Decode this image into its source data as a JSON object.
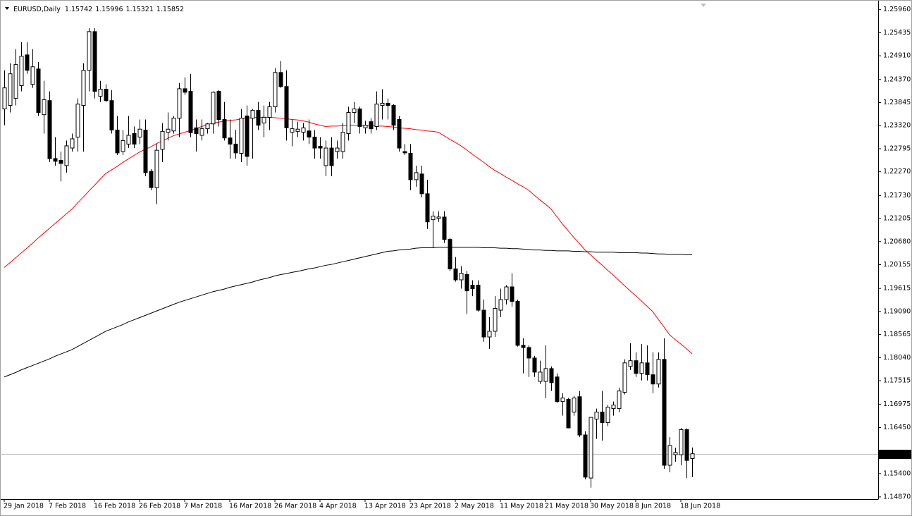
{
  "chart_data": {
    "type": "candlestick",
    "title": "EURUSD,Daily",
    "categories": [
      "29 Jan 2018",
      null,
      null,
      null,
      null,
      null,
      null,
      null,
      "7 Feb 2018",
      null,
      null,
      null,
      null,
      null,
      null,
      null,
      "16 Feb 2018",
      null,
      null,
      null,
      null,
      null,
      null,
      null,
      "26 Feb 2018",
      null,
      null,
      null,
      null,
      null,
      null,
      null,
      "7 Mar 2018",
      null,
      null,
      null,
      null,
      null,
      null,
      null,
      "16 Mar 2018",
      null,
      null,
      null,
      null,
      null,
      null,
      null,
      "26 Mar 2018",
      null,
      null,
      null,
      null,
      null,
      null,
      null,
      "4 Apr 2018",
      null,
      null,
      null,
      null,
      null,
      null,
      null,
      "13 Apr 2018",
      null,
      null,
      null,
      null,
      null,
      null,
      null,
      "23 Apr 2018",
      null,
      null,
      null,
      null,
      null,
      null,
      null,
      "2 May 2018",
      null,
      null,
      null,
      null,
      null,
      null,
      null,
      "11 May 2018",
      null,
      null,
      null,
      null,
      null,
      null,
      null,
      "21 May 2018",
      null,
      null,
      null,
      null,
      null,
      null,
      null,
      "30 May 2018",
      null,
      null,
      null,
      null,
      null,
      null,
      null,
      "8 Jun 2018",
      null,
      null,
      null,
      null,
      null,
      null,
      null,
      "18 Jun 2018",
      null,
      null
    ],
    "open": [
      1.237,
      1.2378,
      1.2394,
      1.2423,
      1.2493,
      1.2426,
      1.2461,
      1.2357,
      1.2389,
      1.2257,
      1.2253,
      1.2241,
      1.2281,
      1.2306,
      1.2378,
      1.2458,
      1.2546,
      1.2399,
      1.2415,
      1.2389,
      1.2322,
      1.2273,
      1.229,
      1.2314,
      1.2306,
      1.2322,
      1.2228,
      1.2191,
      1.2278,
      1.2317,
      1.232,
      1.2349,
      1.2416,
      1.241,
      1.2327,
      1.231,
      1.2325,
      1.2336,
      1.241,
      1.2346,
      1.2304,
      1.229,
      1.2269,
      1.2354,
      1.2349,
      1.2367,
      1.2338,
      1.2351,
      1.2375,
      1.2453,
      1.2421,
      1.2317,
      1.2319,
      1.2317,
      1.232,
      1.2306,
      1.2285,
      1.2241,
      1.2281,
      1.2273,
      1.2273,
      1.2314,
      1.2362,
      1.237,
      1.2327,
      1.2341,
      1.233,
      1.2378,
      1.2383,
      1.2378,
      1.2346,
      1.2273,
      1.2269,
      1.2209,
      1.2222,
      1.2177,
      1.2118,
      1.2121,
      1.2124,
      1.2073,
      1.2006,
      1.1981,
      1.1993,
      1.1969,
      1.1969,
      1.1912,
      1.1851,
      1.1864,
      1.1912,
      1.1936,
      1.1965,
      1.1932,
      1.1832,
      1.1827,
      1.1803,
      1.175,
      1.175,
      1.1779,
      1.176,
      1.1704,
      1.1709,
      1.168,
      1.1715,
      1.1628,
      1.153,
      1.1664,
      1.168,
      1.1656,
      1.1688,
      1.1688,
      1.1725,
      1.1784,
      1.1797,
      1.1768,
      1.1792,
      1.1765,
      1.1744,
      1.18,
      1.1559,
      1.1583,
      1.1583,
      1.164,
      1.15742
    ],
    "high": [
      1.2458,
      1.2474,
      1.2506,
      1.2522,
      1.2522,
      1.2506,
      1.2477,
      1.2434,
      1.241,
      1.2306,
      1.2273,
      1.2298,
      1.2314,
      1.2394,
      1.2474,
      1.2554,
      1.2554,
      1.2434,
      1.2426,
      1.2413,
      1.2354,
      1.2322,
      1.2354,
      1.233,
      1.2346,
      1.2346,
      1.2233,
      1.229,
      1.2338,
      1.2362,
      1.2354,
      1.2429,
      1.2442,
      1.245,
      1.2346,
      1.2346,
      1.2338,
      1.241,
      1.2413,
      1.2386,
      1.2346,
      1.2322,
      1.237,
      1.2378,
      1.237,
      1.2386,
      1.2378,
      1.2386,
      1.2463,
      1.2479,
      1.2458,
      1.2346,
      1.2341,
      1.2338,
      1.2346,
      1.2322,
      1.2306,
      1.2298,
      1.2306,
      1.2298,
      1.2338,
      1.2375,
      1.2386,
      1.2375,
      1.2343,
      1.2349,
      1.241,
      1.2415,
      1.2394,
      1.2381,
      1.2354,
      1.229,
      1.229,
      1.2241,
      1.2241,
      1.2209,
      1.2137,
      1.2137,
      1.2137,
      1.2076,
      1.2033,
      1.2012,
      1.2001,
      1.198,
      1.198,
      1.1936,
      1.1896,
      1.1944,
      1.1961,
      1.1969,
      1.1996,
      1.1936,
      1.1848,
      1.1832,
      1.1808,
      1.1797,
      1.1832,
      1.1784,
      1.1768,
      1.1723,
      1.1712,
      1.1717,
      1.1728,
      1.1636,
      1.1668,
      1.1688,
      1.1728,
      1.1696,
      1.1704,
      1.1736,
      1.18,
      1.1837,
      1.1816,
      1.1835,
      1.1832,
      1.1816,
      1.1816,
      1.1848,
      1.1623,
      1.1599,
      1.1644,
      1.1643,
      1.15996
    ],
    "low": [
      1.2333,
      1.2362,
      1.2378,
      1.241,
      1.245,
      1.2418,
      1.2354,
      1.2314,
      1.2249,
      1.2241,
      1.2205,
      1.2225,
      1.2273,
      1.2273,
      1.2273,
      1.241,
      1.2394,
      1.2386,
      1.2386,
      1.2314,
      1.2265,
      1.2265,
      1.2281,
      1.2281,
      1.229,
      1.2217,
      1.2185,
      1.2153,
      1.2249,
      1.2298,
      1.2314,
      1.2306,
      1.2402,
      1.2306,
      1.2273,
      1.2298,
      1.2314,
      1.2314,
      1.233,
      1.2298,
      1.2257,
      1.2257,
      1.2249,
      1.2241,
      1.2257,
      1.2322,
      1.2306,
      1.2322,
      1.2362,
      1.2418,
      1.2298,
      1.2285,
      1.2306,
      1.2298,
      1.229,
      1.2257,
      1.2257,
      1.2217,
      1.2217,
      1.2257,
      1.2257,
      1.2298,
      1.2338,
      1.2314,
      1.2314,
      1.2314,
      1.2322,
      1.2346,
      1.2346,
      1.2322,
      1.2273,
      1.2265,
      1.2185,
      1.2193,
      1.2169,
      1.2097,
      1.2054,
      1.2113,
      1.2065,
      1.2001,
      1.1977,
      1.1961,
      1.1904,
      1.1944,
      1.1909,
      1.184,
      1.1824,
      1.1851,
      1.1896,
      1.1925,
      1.192,
      1.1829,
      1.1768,
      1.176,
      1.176,
      1.1744,
      1.1712,
      1.1728,
      1.1701,
      1.1672,
      1.1643,
      1.1672,
      1.1623,
      1.1527,
      1.1508,
      1.1619,
      1.1615,
      1.1648,
      1.1672,
      1.168,
      1.172,
      1.1776,
      1.176,
      1.1752,
      1.1752,
      1.1723,
      1.1736,
      1.1551,
      1.1543,
      1.1567,
      1.1559,
      1.153,
      1.15321
    ],
    "close": [
      1.2418,
      1.245,
      1.2471,
      1.249,
      1.2458,
      1.2466,
      1.2362,
      1.2391,
      1.2257,
      1.2251,
      1.2246,
      1.2286,
      1.2302,
      1.2381,
      1.2458,
      1.2546,
      1.241,
      1.2415,
      1.2389,
      1.2322,
      1.227,
      1.2298,
      1.231,
      1.229,
      1.2324,
      1.2225,
      1.2191,
      1.2276,
      1.2319,
      1.2324,
      1.2349,
      1.2416,
      1.2408,
      1.2316,
      1.2314,
      1.2325,
      1.2336,
      1.2408,
      1.2346,
      1.2304,
      1.229,
      1.227,
      1.2349,
      1.2262,
      1.2367,
      1.2333,
      1.2351,
      1.2375,
      1.2453,
      1.2421,
      1.2327,
      1.2325,
      1.2324,
      1.2327,
      1.2306,
      1.2281,
      1.2281,
      1.2281,
      1.2241,
      1.2281,
      1.2317,
      1.2362,
      1.237,
      1.233,
      1.2333,
      1.2325,
      1.2381,
      1.2383,
      1.2378,
      1.2333,
      1.2281,
      1.227,
      1.2209,
      1.2225,
      1.2177,
      1.2113,
      1.2126,
      1.2124,
      1.2073,
      1.2006,
      1.1981,
      1.1996,
      1.1956,
      1.1961,
      1.1912,
      1.1851,
      1.1864,
      1.1916,
      1.1936,
      1.1965,
      1.1932,
      1.1832,
      1.1827,
      1.1803,
      1.1771,
      1.1771,
      1.1779,
      1.1747,
      1.1704,
      1.1712,
      1.1644,
      1.1712,
      1.1628,
      1.1532,
      1.1668,
      1.168,
      1.1656,
      1.1691,
      1.1696,
      1.1728,
      1.1792,
      1.1797,
      1.1768,
      1.1792,
      1.1765,
      1.1744,
      1.18,
      1.1559,
      1.1604,
      1.1588,
      1.164,
      1.157,
      1.15852
    ],
    "up_color": "#ffffff",
    "down_color": "#000000",
    "lines": [
      {
        "color": "#ff0000",
        "values": [
          1.2009,
          1.202,
          1.2031,
          1.2042,
          1.2053,
          1.2064,
          1.2076,
          1.2087,
          1.2098,
          1.2109,
          1.212,
          1.2131,
          1.2142,
          1.2156,
          1.2169,
          1.2183,
          1.2196,
          1.221,
          1.2223,
          1.2231,
          1.2239,
          1.2248,
          1.2256,
          1.2264,
          1.2272,
          1.2278,
          1.2284,
          1.2291,
          1.2297,
          1.2303,
          1.2309,
          1.2313,
          1.2317,
          1.2321,
          1.2325,
          1.233,
          1.2334,
          1.2338,
          1.234,
          1.2342,
          1.2344,
          1.2345,
          1.2347,
          1.2349,
          1.235,
          1.2351,
          1.2351,
          1.2351,
          1.235,
          1.2349,
          1.2348,
          1.2346,
          1.2345,
          1.2343,
          1.234,
          1.2336,
          1.2333,
          1.233,
          1.2331,
          1.2331,
          1.2332,
          1.2332,
          1.2333,
          1.2333,
          1.2332,
          1.2332,
          1.2331,
          1.2331,
          1.233,
          1.2329,
          1.2327,
          1.2326,
          1.2325,
          1.2323,
          1.2322,
          1.232,
          1.2319,
          1.2317,
          1.2309,
          1.2301,
          1.2294,
          1.2286,
          1.2277,
          1.2267,
          1.2258,
          1.2249,
          1.2239,
          1.223,
          1.2223,
          1.2215,
          1.2208,
          1.22,
          1.2193,
          1.2185,
          1.2174,
          1.2163,
          1.2153,
          1.2142,
          1.2125,
          1.2108,
          1.2093,
          1.2078,
          1.2064,
          1.2049,
          1.2038,
          1.2026,
          1.2015,
          1.2003,
          1.1992,
          1.198,
          1.1968,
          1.1956,
          1.1945,
          1.1933,
          1.1921,
          1.1909,
          1.1891,
          1.1874,
          1.1856,
          1.1845,
          1.1835,
          1.1824,
          1.1813
        ]
      },
      {
        "color": "#000000",
        "values": [
          1.176,
          1.1765,
          1.177,
          1.1776,
          1.1781,
          1.1786,
          1.1791,
          1.1796,
          1.1801,
          1.1807,
          1.1812,
          1.1817,
          1.1822,
          1.1829,
          1.1836,
          1.1843,
          1.185,
          1.1857,
          1.1864,
          1.1869,
          1.1874,
          1.1879,
          1.1885,
          1.189,
          1.1895,
          1.19,
          1.1905,
          1.191,
          1.1915,
          1.192,
          1.1925,
          1.193,
          1.1934,
          1.1938,
          1.1942,
          1.1946,
          1.195,
          1.1954,
          1.1957,
          1.196,
          1.1964,
          1.1967,
          1.197,
          1.1973,
          1.1976,
          1.198,
          1.1983,
          1.1986,
          1.199,
          1.1993,
          1.1995,
          1.1998,
          1.2,
          1.2003,
          1.2006,
          1.2008,
          1.2011,
          1.2014,
          1.2016,
          1.2019,
          1.2022,
          1.2025,
          1.2028,
          1.2031,
          1.2034,
          1.2037,
          1.204,
          1.2043,
          1.2046,
          1.2047,
          1.2049,
          1.205,
          1.2051,
          1.2053,
          1.2054,
          1.2054,
          1.2054,
          1.2055,
          1.2055,
          1.2055,
          1.2055,
          1.2055,
          1.2055,
          1.2055,
          1.2055,
          1.2054,
          1.2054,
          1.2054,
          1.2053,
          1.2053,
          1.2052,
          1.2052,
          1.2051,
          1.205,
          1.2049,
          1.2049,
          1.2048,
          1.2048,
          1.2047,
          1.2047,
          1.2047,
          1.2046,
          1.2046,
          1.2045,
          1.2045,
          1.2044,
          1.2044,
          1.2044,
          1.2044,
          1.2043,
          1.2043,
          1.2043,
          1.2043,
          1.2042,
          1.2042,
          1.2041,
          1.204,
          1.204,
          1.2039,
          1.2039,
          1.2039,
          1.2038,
          1.2038
        ]
      }
    ],
    "ylim": [
      1.1482,
      1.2618
    ],
    "yticks": [
      {
        "value": 1.2596,
        "label": "1.25960"
      },
      1.25435,
      {
        "value": 1.2491,
        "label": "1.24910"
      },
      {
        "value": 1.2437,
        "label": "1.24370"
      },
      1.23845,
      {
        "value": 1.2332,
        "label": "1.23320"
      },
      1.22795,
      {
        "value": 1.2227,
        "label": "1.22270"
      },
      {
        "value": 1.2173,
        "label": "1.21730"
      },
      1.21205,
      {
        "value": 1.2068,
        "label": "1.20680"
      },
      1.20155,
      1.19615,
      {
        "value": 1.1909,
        "label": "1.19090"
      },
      1.18565,
      {
        "value": 1.1804,
        "label": "1.18040"
      },
      1.17515,
      1.16975,
      {
        "value": 1.1645,
        "label": "1.16450"
      },
      {
        "value": 1.154,
        "label": "1.15400"
      },
      {
        "value": 1.1487,
        "label": "1.14870"
      }
    ],
    "grid": false
  }
}
